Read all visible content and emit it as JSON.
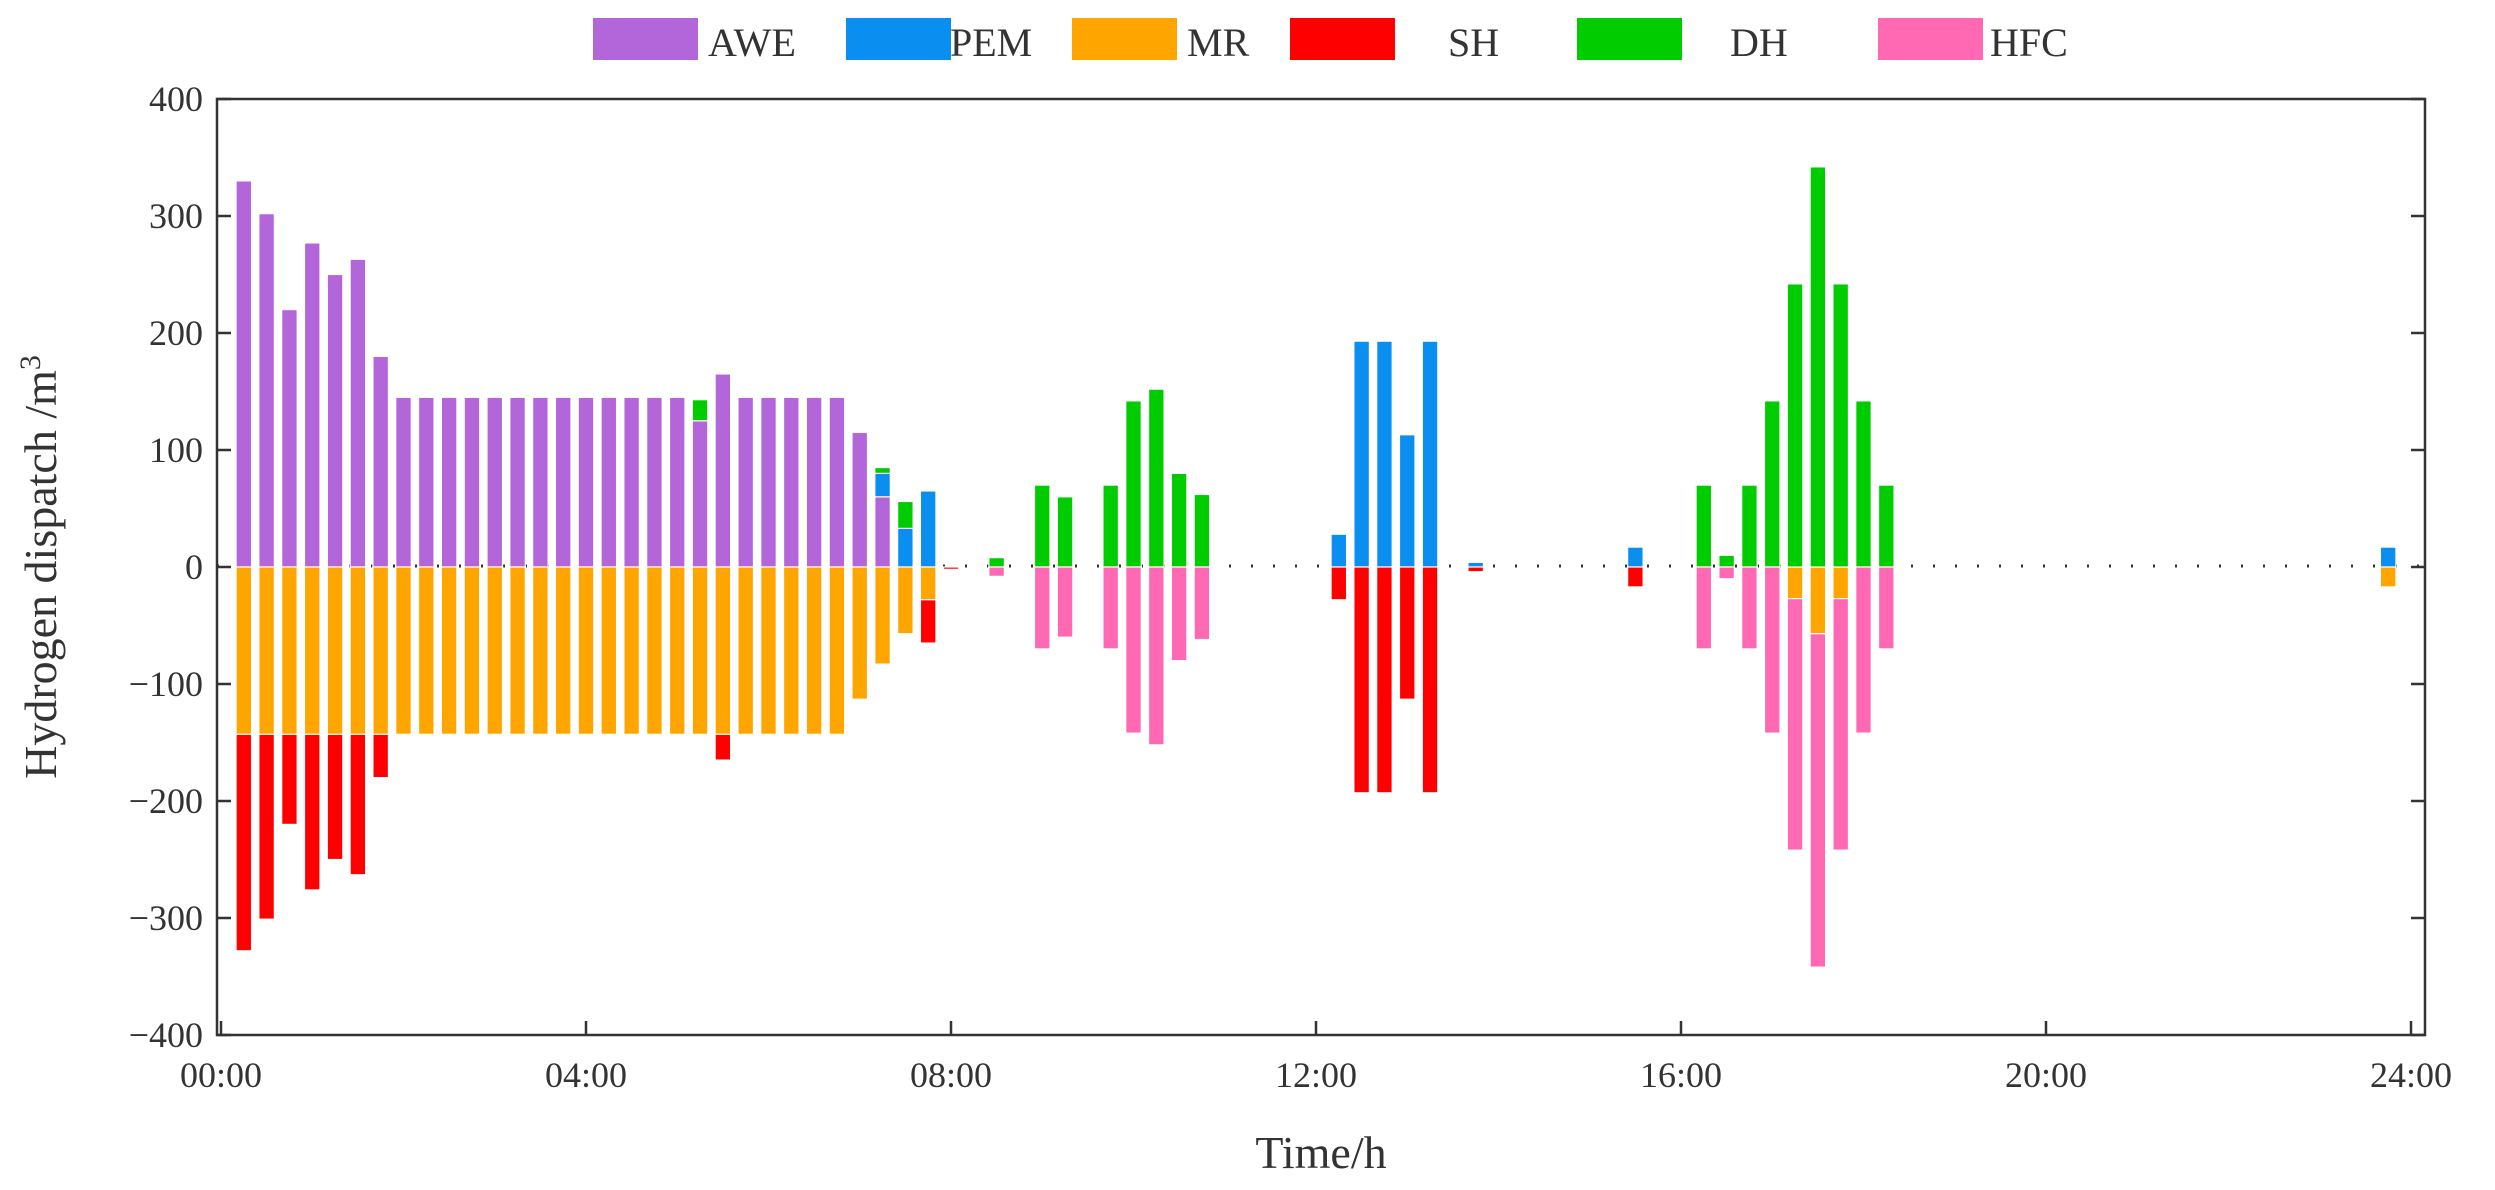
{
  "chart_data": {
    "type": "bar",
    "stacked": true,
    "title": "",
    "xlabel": "Time/h",
    "ylabel": "Hydrogen dispatch /m³",
    "ylabel_base": "Hydrogen dispatch /m",
    "ylabel_sup": "3",
    "ylim": [
      -400,
      400
    ],
    "xlim": [
      0,
      24
    ],
    "bar_width_h": 0.17,
    "grid": false,
    "legend_position": "top",
    "x_ticks": [
      {
        "value": 0,
        "label": "00:00"
      },
      {
        "value": 4,
        "label": "04:00"
      },
      {
        "value": 8,
        "label": "08:00"
      },
      {
        "value": 12,
        "label": "12:00"
      },
      {
        "value": 16,
        "label": "16:00"
      },
      {
        "value": 20,
        "label": "20:00"
      },
      {
        "value": 24,
        "label": "24:00"
      }
    ],
    "y_ticks": [
      {
        "value": 400,
        "label": "400"
      },
      {
        "value": 300,
        "label": "300"
      },
      {
        "value": 200,
        "label": "200"
      },
      {
        "value": 100,
        "label": "100"
      },
      {
        "value": 0,
        "label": "0"
      },
      {
        "value": -100,
        "label": "−100"
      },
      {
        "value": -200,
        "label": "−200"
      },
      {
        "value": -300,
        "label": "−300"
      },
      {
        "value": -400,
        "label": "−400"
      }
    ],
    "series": [
      {
        "name": "AWE",
        "color": "#b366d9",
        "side": "positive",
        "points": [
          [
            0.25,
            330
          ],
          [
            0.5,
            302
          ],
          [
            0.75,
            220
          ],
          [
            1.0,
            277
          ],
          [
            1.25,
            250
          ],
          [
            1.5,
            263
          ],
          [
            1.75,
            180
          ],
          [
            2.0,
            145
          ],
          [
            2.25,
            145
          ],
          [
            2.5,
            145
          ],
          [
            2.75,
            145
          ],
          [
            3.0,
            145
          ],
          [
            3.25,
            145
          ],
          [
            3.5,
            145
          ],
          [
            3.75,
            145
          ],
          [
            4.0,
            145
          ],
          [
            4.25,
            145
          ],
          [
            4.5,
            145
          ],
          [
            4.75,
            145
          ],
          [
            5.0,
            145
          ],
          [
            5.25,
            125
          ],
          [
            5.5,
            165
          ],
          [
            5.75,
            145
          ],
          [
            6.0,
            145
          ],
          [
            6.25,
            145
          ],
          [
            6.5,
            145
          ],
          [
            6.75,
            145
          ],
          [
            7.0,
            115
          ],
          [
            7.25,
            60
          ]
        ]
      },
      {
        "name": "PEM",
        "color": "#0a8ef0",
        "side": "positive",
        "points": [
          [
            7.25,
            20
          ],
          [
            7.5,
            33
          ],
          [
            7.75,
            65
          ],
          [
            12.25,
            28
          ],
          [
            12.5,
            193
          ],
          [
            12.75,
            193
          ],
          [
            13.0,
            113
          ],
          [
            13.25,
            193
          ],
          [
            13.75,
            4
          ],
          [
            15.5,
            17
          ],
          [
            23.75,
            17
          ]
        ]
      },
      {
        "name": "MR",
        "color": "#ffa500",
        "side": "negative",
        "points": [
          [
            0.25,
            143
          ],
          [
            0.5,
            143
          ],
          [
            0.75,
            143
          ],
          [
            1.0,
            143
          ],
          [
            1.25,
            143
          ],
          [
            1.5,
            143
          ],
          [
            1.75,
            143
          ],
          [
            2.0,
            143
          ],
          [
            2.25,
            143
          ],
          [
            2.5,
            143
          ],
          [
            2.75,
            143
          ],
          [
            3.0,
            143
          ],
          [
            3.25,
            143
          ],
          [
            3.5,
            143
          ],
          [
            3.75,
            143
          ],
          [
            4.0,
            143
          ],
          [
            4.25,
            143
          ],
          [
            4.5,
            143
          ],
          [
            4.75,
            143
          ],
          [
            5.0,
            143
          ],
          [
            5.25,
            143
          ],
          [
            5.5,
            143
          ],
          [
            5.75,
            143
          ],
          [
            6.0,
            143
          ],
          [
            6.25,
            143
          ],
          [
            6.5,
            143
          ],
          [
            6.75,
            143
          ],
          [
            7.0,
            113
          ],
          [
            7.25,
            83
          ],
          [
            7.5,
            57
          ],
          [
            7.75,
            28
          ],
          [
            17.25,
            27
          ],
          [
            17.5,
            57
          ],
          [
            17.75,
            27
          ],
          [
            23.75,
            17
          ]
        ]
      },
      {
        "name": "SH",
        "color": "#ff0000",
        "side": "negative",
        "points": [
          [
            0.25,
            185
          ],
          [
            0.5,
            158
          ],
          [
            0.75,
            77
          ],
          [
            1.0,
            133
          ],
          [
            1.25,
            107
          ],
          [
            1.5,
            120
          ],
          [
            1.75,
            37
          ],
          [
            5.5,
            22
          ],
          [
            7.75,
            37
          ],
          [
            8.0,
            2
          ],
          [
            12.25,
            28
          ],
          [
            12.5,
            193
          ],
          [
            12.75,
            193
          ],
          [
            13.0,
            113
          ],
          [
            13.25,
            193
          ],
          [
            13.75,
            4
          ],
          [
            15.5,
            17
          ]
        ]
      },
      {
        "name": "DH",
        "color": "#00cc00",
        "side": "positive",
        "points": [
          [
            5.25,
            18
          ],
          [
            7.25,
            5
          ],
          [
            7.5,
            23
          ],
          [
            8.5,
            8
          ],
          [
            9.0,
            70
          ],
          [
            9.25,
            60
          ],
          [
            9.75,
            70
          ],
          [
            10.0,
            142
          ],
          [
            10.25,
            152
          ],
          [
            10.5,
            80
          ],
          [
            10.75,
            62
          ],
          [
            16.25,
            70
          ],
          [
            16.5,
            10
          ],
          [
            16.75,
            70
          ],
          [
            17.0,
            142
          ],
          [
            17.25,
            242
          ],
          [
            17.5,
            342
          ],
          [
            17.75,
            242
          ],
          [
            18.0,
            142
          ],
          [
            18.25,
            70
          ]
        ]
      },
      {
        "name": "HFC",
        "color": "#ff69b4",
        "side": "negative",
        "points": [
          [
            8.5,
            8
          ],
          [
            9.0,
            70
          ],
          [
            9.25,
            60
          ],
          [
            9.75,
            70
          ],
          [
            10.0,
            142
          ],
          [
            10.25,
            152
          ],
          [
            10.5,
            80
          ],
          [
            10.75,
            62
          ],
          [
            16.25,
            70
          ],
          [
            16.5,
            10
          ],
          [
            16.75,
            70
          ],
          [
            17.0,
            142
          ],
          [
            17.25,
            215
          ],
          [
            17.5,
            285
          ],
          [
            17.75,
            215
          ],
          [
            18.0,
            142
          ],
          [
            18.25,
            70
          ]
        ]
      }
    ]
  }
}
